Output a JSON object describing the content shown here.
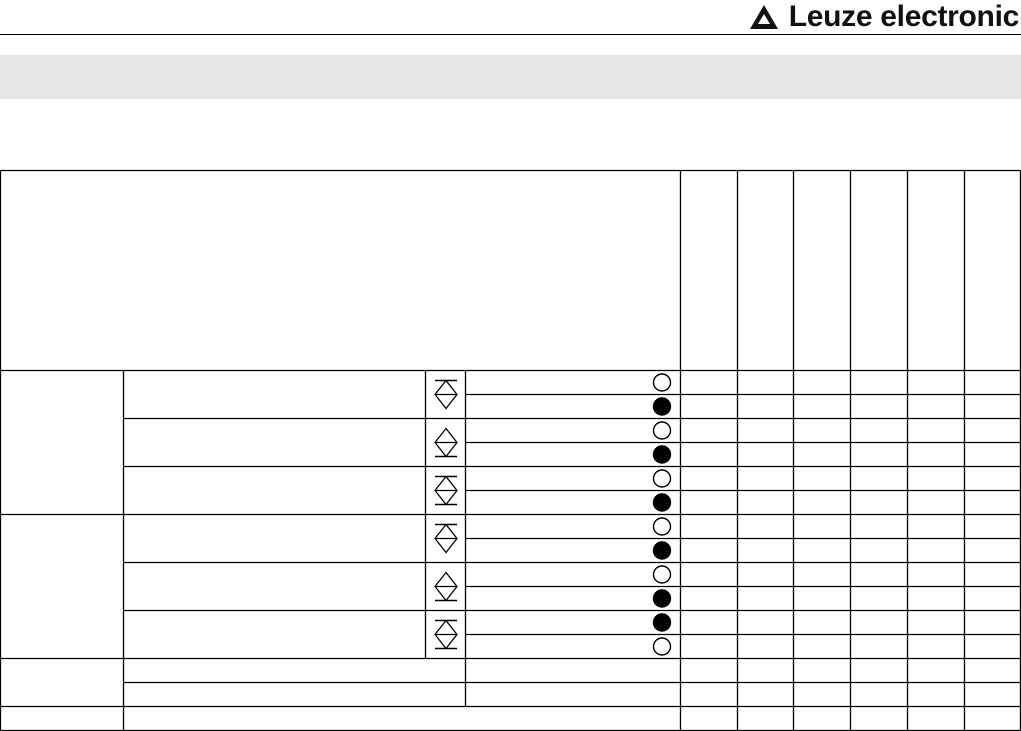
{
  "header": {
    "logo_text": "Leuze electronic",
    "logo_icon": "leuze-triangle-logo-icon"
  },
  "table": {
    "value_columns": 6,
    "groups": [
      {
        "rows": [
          {
            "icon": "diamond-bar-top-icon",
            "states": [
              "open",
              "filled"
            ]
          },
          {
            "icon": "diamond-bar-bottom-icon",
            "states": [
              "open",
              "filled"
            ]
          },
          {
            "icon": "diamond-bar-both-icon",
            "states": [
              "open",
              "filled"
            ]
          }
        ]
      },
      {
        "rows": [
          {
            "icon": "diamond-bar-top-icon",
            "states": [
              "open",
              "filled"
            ]
          },
          {
            "icon": "diamond-bar-bottom-icon",
            "states": [
              "open",
              "filled"
            ]
          },
          {
            "icon": "diamond-bar-both-icon",
            "states": [
              "filled",
              "open"
            ]
          }
        ]
      }
    ]
  }
}
